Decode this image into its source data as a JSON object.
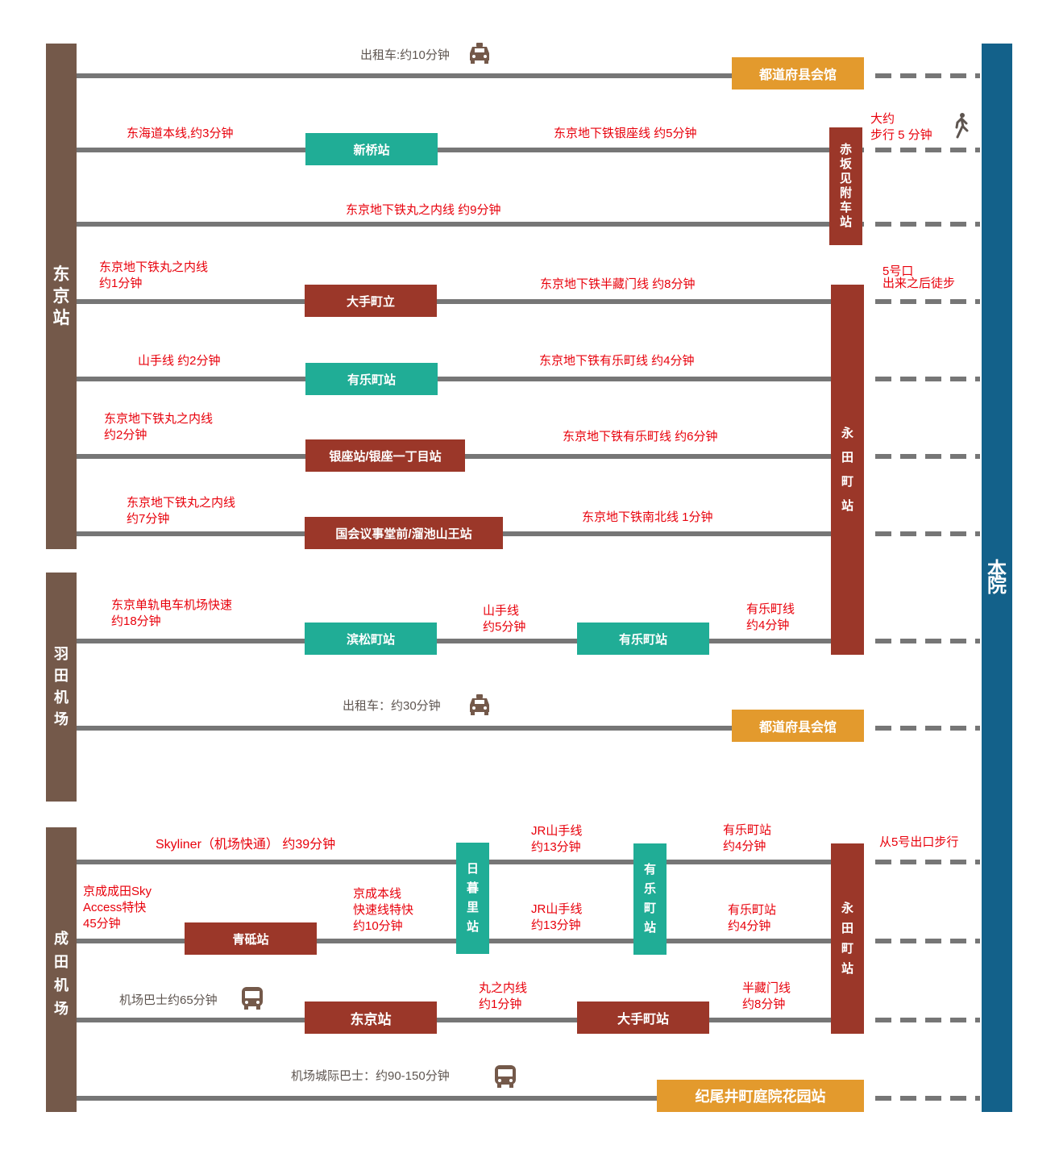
{
  "colors": {
    "origin_bar": "#74594a",
    "destination_bar": "#13618a",
    "line": "#767676",
    "transfer_station": "#20ad96",
    "station": "#9b3729",
    "destination_station": "#e39a2d",
    "route_text": "#e8000b"
  },
  "origins": {
    "tokyo": "东\n京\n站",
    "haneda": "羽\n田\n机\n场",
    "narita": "成\n田\n机\n场"
  },
  "destination": "本\n院",
  "routes": {
    "r1": {
      "label": "出租车:约10分钟",
      "icon": "taxi-icon",
      "station": "都道府县会馆"
    },
    "r2": {
      "left": "东海道本线,约3分钟",
      "station": "新桥站",
      "right": "东京地下铁银座线 约5分钟",
      "transfer": "赤\n坂\n见\n附\n车\n站",
      "walk": "大约\n步行 5 分钟",
      "icon": "walking-icon"
    },
    "r3": {
      "label": "东京地下铁丸之内线 约9分钟"
    },
    "r4": {
      "left": "东京地下铁丸之内线\n约1分钟",
      "station": "大手町立",
      "right": "东京地下铁半藏门线 约8分钟",
      "transfer": "永\n\n田\n\n町\n\n站",
      "walk": "5号口\n出来之后徒步"
    },
    "r5": {
      "left": "山手线 约2分钟",
      "station": "有乐町站",
      "right": "东京地下铁有乐町线 约4分钟"
    },
    "r6": {
      "left": "东京地下铁丸之内线\n约2分钟",
      "station": "银座站/银座一丁目站",
      "right": "东京地下铁有乐町线 约6分钟"
    },
    "r7": {
      "left": "东京地下铁丸之内线\n约7分钟",
      "station": "国会议事堂前/溜池山王站",
      "right": "东京地下铁南北线 1分钟"
    },
    "r8": {
      "left": "东京单轨电车机场快速\n约18分钟",
      "station1": "滨松町站",
      "mid": "山手线\n约5分钟",
      "station2": "有乐町站",
      "right": "有乐町线\n约4分钟"
    },
    "r9": {
      "label": "出租车：约30分钟",
      "icon": "taxi-icon",
      "station": "都道府县会馆"
    },
    "r10": {
      "left": "Skyliner（机场快通） 约39分钟",
      "transfer1": "日\n暮\n里\n站",
      "mid": "JR山手线\n约13分钟",
      "transfer2": "有\n乐\n町\n站",
      "right": "有乐町站\n约4分钟",
      "transfer3": "永\n田\n町\n站",
      "walk": "从5号出口步行"
    },
    "r11": {
      "left": "京成成田Sky\n Access特快\n45分钟",
      "station": "青砥站",
      "mid1": "京成本线\n快速线特快\n约10分钟",
      "mid2": "JR山手线\n约13分钟",
      "right": "有乐町站\n约4分钟"
    },
    "r12": {
      "left": "机场巴士约65分钟",
      "icon": "bus-icon",
      "station1": "东京站",
      "mid": "丸之内线\n约1分钟",
      "station2": "大手町站",
      "right": "半藏门线\n约8分钟"
    },
    "r13": {
      "label": "机场城际巴士：约90-150分钟",
      "icon": "bus-icon",
      "station": "纪尾井町庭院花园站"
    }
  }
}
